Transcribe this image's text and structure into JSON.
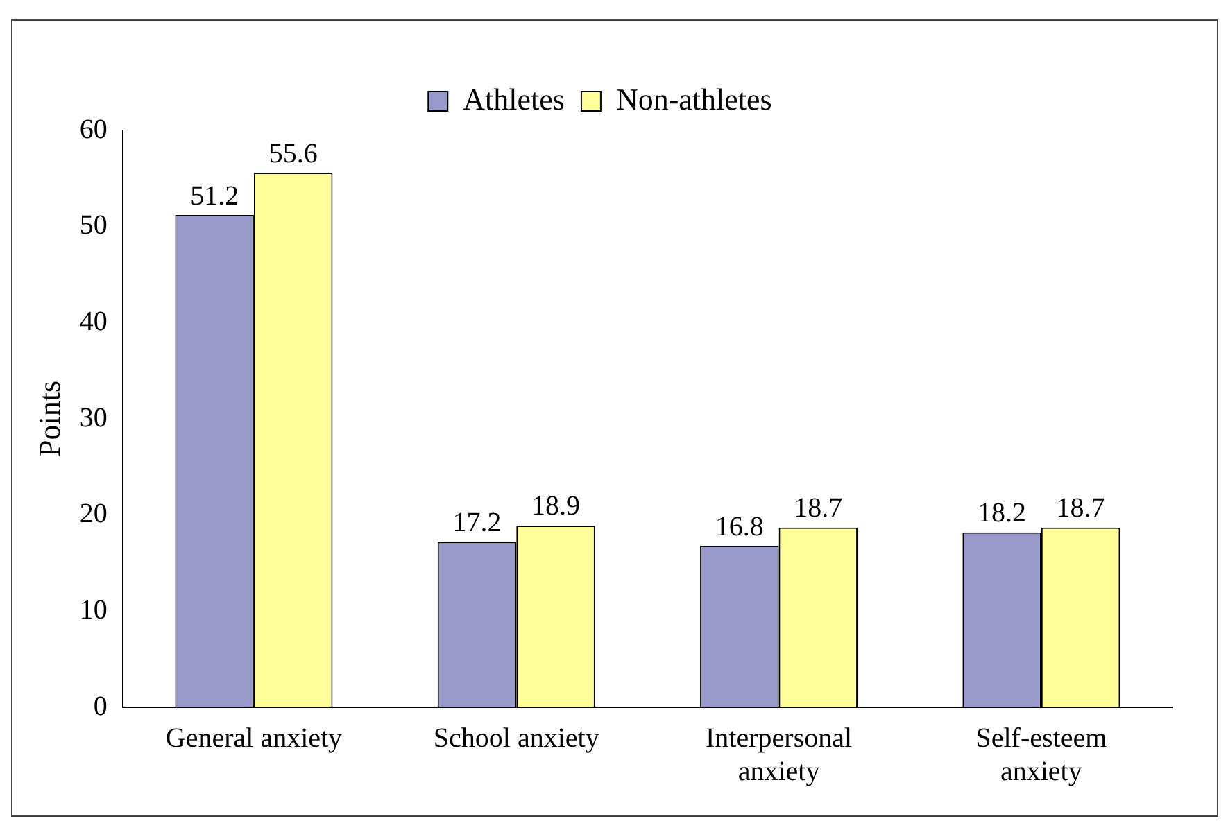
{
  "chart_data": {
    "type": "bar",
    "ylabel": "Points",
    "categories": [
      "General anxiety",
      "School anxiety",
      "Interpersonal anxiety",
      "Self-esteem anxiety"
    ],
    "series": [
      {
        "name": "Athletes",
        "color": "#9999cc",
        "values": [
          51.2,
          17.2,
          16.8,
          18.2
        ]
      },
      {
        "name": "Non-athletes",
        "color": "#ffff99",
        "values": [
          55.6,
          18.9,
          18.7,
          18.7
        ]
      }
    ],
    "ylim": [
      0,
      60
    ],
    "yticks": [
      0,
      10,
      20,
      30,
      40,
      50,
      60
    ],
    "grid": false,
    "legend": "top",
    "data_labels": true
  }
}
